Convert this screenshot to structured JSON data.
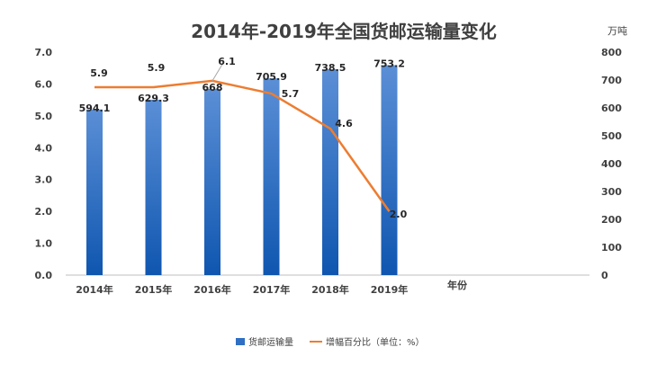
{
  "chart_data": {
    "type": "bar",
    "title": "2014年-2019年全国货邮运输量变化",
    "categories": [
      "2014年",
      "2015年",
      "2016年",
      "2017年",
      "2018年",
      "2019年"
    ],
    "xlabel": "年份",
    "y_left": {
      "ylim": [
        0,
        7
      ],
      "ticks": [
        "0.0",
        "1.0",
        "2.0",
        "3.0",
        "4.0",
        "5.0",
        "6.0",
        "7.0"
      ]
    },
    "y_right": {
      "ylim": [
        0,
        800
      ],
      "unit": "万吨",
      "ticks": [
        "0",
        "100",
        "200",
        "300",
        "400",
        "500",
        "600",
        "700",
        "800"
      ]
    },
    "series": [
      {
        "name": "货邮运输量",
        "type": "bar",
        "axis": "right",
        "values": [
          594.1,
          629.3,
          668,
          705.9,
          738.5,
          753.2
        ],
        "labels": [
          "594.1",
          "629.3",
          "668",
          "705.9",
          "738.5",
          "753.2"
        ],
        "color": "#2f6fc4"
      },
      {
        "name": "增幅百分比（单位：%）",
        "type": "line",
        "axis": "left",
        "values": [
          5.9,
          5.9,
          6.1,
          5.7,
          4.6,
          2.0
        ],
        "labels": [
          "5.9",
          "5.9",
          "6.1",
          "5.7",
          "4.6",
          "2.0"
        ],
        "color": "#ed7d31"
      }
    ],
    "legend": "bottom",
    "grid": false
  }
}
